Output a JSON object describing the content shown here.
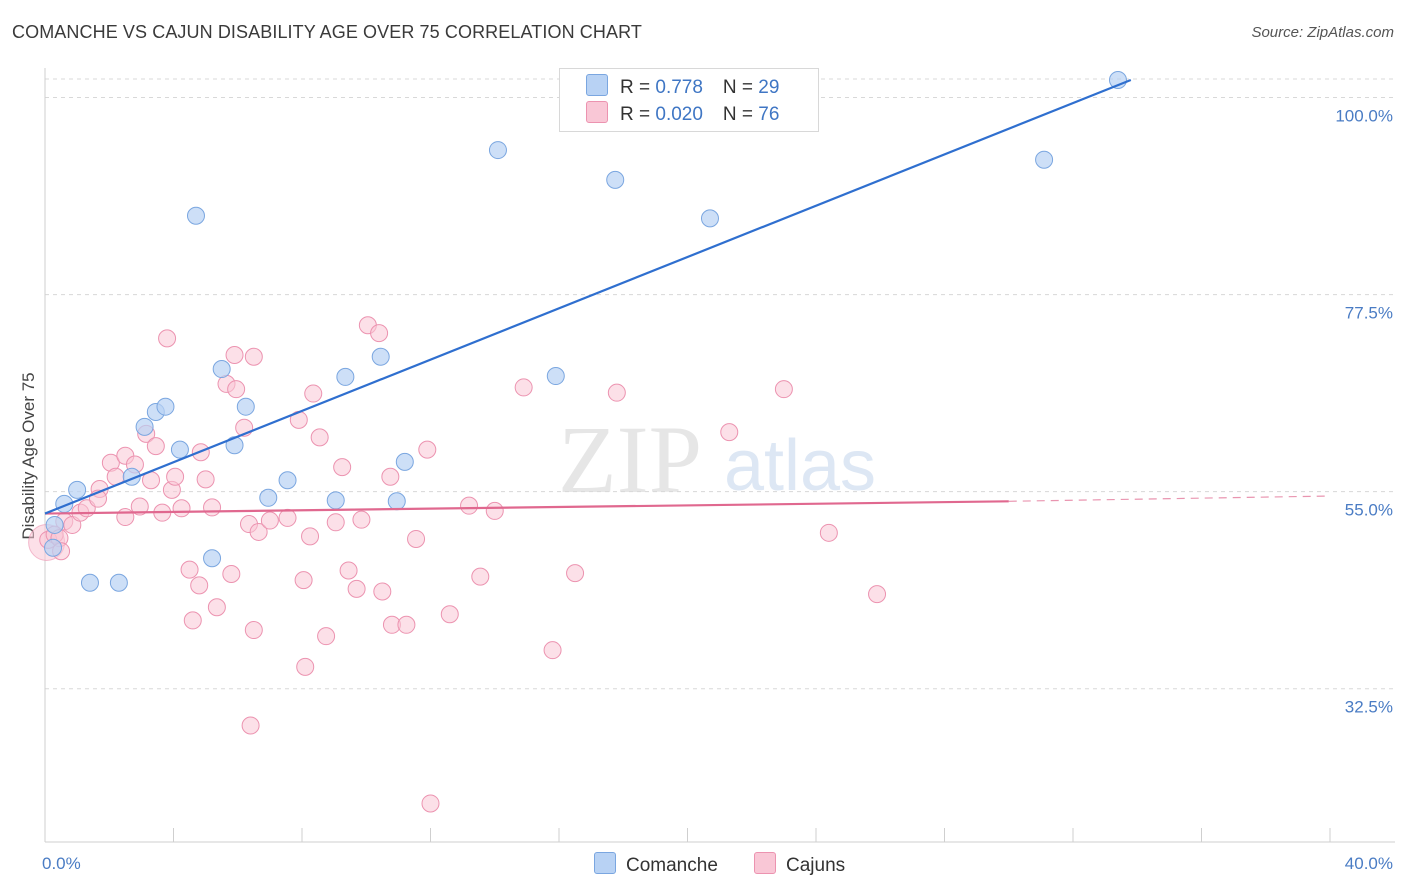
{
  "title": "COMANCHE VS CAJUN DISABILITY AGE OVER 75 CORRELATION CHART",
  "source": "Source: ZipAtlas.com",
  "watermark": {
    "zip": "ZIP",
    "atlas": "atlas"
  },
  "legend": {
    "rows": [
      {
        "r_label": "R = ",
        "r_value": "0.778",
        "n_label": "N = ",
        "n_value": "29"
      },
      {
        "r_label": "R = ",
        "r_value": "0.020",
        "n_label": "N = ",
        "n_value": "76"
      }
    ]
  },
  "colors": {
    "comanche_fill": "#b8d2f4",
    "comanche_stroke": "#7aa6e0",
    "comanche_line": "#2f6fcf",
    "cajun_fill": "#f9c7d6",
    "cajun_stroke": "#ec93b0",
    "cajun_line": "#e0688f",
    "tick_text": "#4a7cc4",
    "grid": "#d8d8d8"
  },
  "chart_data": {
    "type": "scatter",
    "title": "COMANCHE VS CAJUN DISABILITY AGE OVER 75 CORRELATION CHART",
    "xlabel": "",
    "ylabel": "Disability Age Over 75",
    "xlim": [
      0,
      40
    ],
    "ylim": [
      15,
      102
    ],
    "x_tick_labels": [
      "0.0%",
      "40.0%"
    ],
    "y_ticks": [
      32.5,
      55.0,
      77.5,
      100.0
    ],
    "y_tick_labels": [
      "32.5%",
      "55.0%",
      "77.5%",
      "100.0%"
    ],
    "grid": true,
    "legend_position": "top-center",
    "series": [
      {
        "name": "Comanche",
        "R": 0.778,
        "N": 29,
        "points": [
          [
            0.3,
            51.2
          ],
          [
            0.25,
            48.6
          ],
          [
            0.6,
            53.6
          ],
          [
            1.0,
            55.2
          ],
          [
            1.4,
            44.6
          ],
          [
            2.3,
            44.6
          ],
          [
            2.7,
            56.7
          ],
          [
            3.1,
            62.4
          ],
          [
            3.45,
            64.1
          ],
          [
            3.75,
            64.7
          ],
          [
            4.2,
            59.8
          ],
          [
            4.7,
            86.5
          ],
          [
            5.2,
            47.4
          ],
          [
            5.5,
            69.0
          ],
          [
            5.9,
            60.3
          ],
          [
            6.25,
            64.7
          ],
          [
            6.95,
            54.3
          ],
          [
            7.55,
            56.3
          ],
          [
            9.35,
            68.1
          ],
          [
            9.05,
            54.0
          ],
          [
            10.45,
            70.4
          ],
          [
            10.95,
            53.9
          ],
          [
            11.2,
            58.4
          ],
          [
            14.1,
            94.0
          ],
          [
            15.9,
            68.2
          ],
          [
            17.75,
            90.6
          ],
          [
            20.7,
            86.2
          ],
          [
            31.1,
            92.9
          ],
          [
            33.4,
            102.0
          ]
        ],
        "trend": {
          "x": [
            0,
            33.8
          ],
          "y": [
            52.5,
            102.0
          ]
        }
      },
      {
        "name": "Cajuns",
        "R": 0.02,
        "N": 76,
        "points": [
          [
            0.1,
            49.5
          ],
          [
            0.3,
            50.1
          ],
          [
            0.45,
            49.7
          ],
          [
            0.6,
            51.6
          ],
          [
            0.85,
            51.2
          ],
          [
            1.1,
            52.6
          ],
          [
            1.3,
            53.1
          ],
          [
            1.7,
            55.3
          ],
          [
            1.65,
            54.2
          ],
          [
            2.05,
            58.3
          ],
          [
            2.2,
            56.7
          ],
          [
            2.5,
            52.1
          ],
          [
            2.5,
            59.1
          ],
          [
            2.8,
            58.1
          ],
          [
            2.95,
            53.3
          ],
          [
            3.15,
            61.6
          ],
          [
            3.3,
            56.3
          ],
          [
            3.45,
            60.2
          ],
          [
            3.65,
            52.6
          ],
          [
            3.95,
            55.2
          ],
          [
            4.05,
            56.7
          ],
          [
            4.25,
            53.1
          ],
          [
            3.8,
            72.5
          ],
          [
            4.5,
            46.1
          ],
          [
            4.6,
            40.3
          ],
          [
            4.8,
            44.3
          ],
          [
            4.85,
            59.5
          ],
          [
            5.0,
            56.4
          ],
          [
            5.2,
            53.2
          ],
          [
            5.35,
            41.8
          ],
          [
            5.65,
            67.3
          ],
          [
            5.9,
            70.6
          ],
          [
            5.95,
            66.7
          ],
          [
            5.8,
            45.6
          ],
          [
            6.2,
            62.3
          ],
          [
            6.35,
            51.3
          ],
          [
            6.5,
            70.4
          ],
          [
            6.5,
            39.2
          ],
          [
            6.65,
            50.4
          ],
          [
            7.0,
            51.7
          ],
          [
            7.55,
            52.0
          ],
          [
            7.9,
            63.2
          ],
          [
            8.05,
            44.9
          ],
          [
            8.25,
            49.9
          ],
          [
            8.35,
            66.2
          ],
          [
            8.55,
            61.2
          ],
          [
            8.75,
            38.5
          ],
          [
            9.05,
            51.5
          ],
          [
            9.25,
            57.8
          ],
          [
            9.45,
            46.0
          ],
          [
            9.7,
            43.9
          ],
          [
            9.85,
            51.8
          ],
          [
            10.05,
            74.0
          ],
          [
            10.4,
            73.1
          ],
          [
            10.5,
            43.6
          ],
          [
            10.75,
            56.7
          ],
          [
            10.8,
            39.8
          ],
          [
            11.25,
            39.8
          ],
          [
            11.55,
            49.6
          ],
          [
            11.9,
            59.8
          ],
          [
            12.6,
            41.0
          ],
          [
            13.2,
            53.4
          ],
          [
            13.55,
            45.3
          ],
          [
            14.0,
            52.8
          ],
          [
            14.9,
            66.9
          ],
          [
            15.8,
            36.9
          ],
          [
            16.5,
            45.7
          ],
          [
            17.8,
            66.3
          ],
          [
            21.3,
            61.8
          ],
          [
            23.0,
            66.7
          ],
          [
            24.4,
            50.3
          ],
          [
            25.9,
            43.3
          ],
          [
            6.4,
            28.3
          ],
          [
            8.1,
            35.0
          ],
          [
            12.0,
            19.4
          ],
          [
            0.5,
            48.2
          ]
        ],
        "trend": {
          "x": [
            0,
            30.0
          ],
          "y": [
            52.5,
            53.9
          ]
        },
        "trend_dashed": {
          "x": [
            30.0,
            40.0
          ],
          "y": [
            53.9,
            54.5
          ]
        }
      }
    ]
  },
  "bottom_legend": [
    {
      "label": "Comanche"
    },
    {
      "label": "Cajuns"
    }
  ]
}
